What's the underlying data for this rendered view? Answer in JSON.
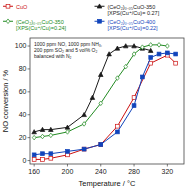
{
  "chart_data": {
    "type": "line",
    "xlabel": "Temperature / °C",
    "ylabel": "NO conversion / %",
    "xlim": [
      155,
      340
    ],
    "ylim": [
      -3,
      107
    ],
    "xticks": [
      160,
      200,
      240,
      280,
      320
    ],
    "yticks": [
      0,
      20,
      40,
      60,
      80,
      100
    ],
    "annotations": [
      "1000 ppm NO, 1000 ppm NH₃,",
      "200 ppm SO₂ and 5 vol% O₂",
      "balanced with N₂"
    ],
    "legend": "top",
    "series": [
      {
        "name": "CuO",
        "color": "#cc1111",
        "marker": "square-open",
        "x": [
          160,
          170,
          180,
          200,
          220,
          240,
          260,
          280,
          300,
          320,
          330
        ],
        "values": [
          1,
          1,
          2,
          5,
          10,
          14,
          30,
          55,
          85,
          92,
          85
        ]
      },
      {
        "name": "(CeO₂)₀.₀₅CuO-350\n[XPS(Cu⁺/Cu)= 0.27]",
        "color": "#1a1a1a",
        "marker": "triangle",
        "x": [
          160,
          170,
          180,
          200,
          220,
          230,
          240,
          250,
          260,
          270,
          280,
          290,
          300
        ],
        "values": [
          25,
          27,
          27,
          29,
          40,
          55,
          75,
          93,
          98,
          100,
          100,
          98,
          96
        ]
      },
      {
        "name": "(CeO₂)₀.₀₅CuO-350\n[XPS(Cu⁺/Cu)=0.24]",
        "color": "#228b22",
        "marker": "diamond-open",
        "x": [
          160,
          170,
          180,
          200,
          220,
          240,
          260,
          270,
          280,
          290,
          300,
          310,
          320
        ],
        "values": [
          20,
          21,
          22,
          25,
          32,
          50,
          72,
          82,
          93,
          99,
          101,
          101,
          100
        ]
      },
      {
        "name": "(CeO₂)₀.₀₅CuO-400\n[XPS(Cu⁺/Cu)=0.22]",
        "color": "#1144bb",
        "marker": "square",
        "x": [
          160,
          170,
          180,
          200,
          220,
          240,
          260,
          280,
          290,
          300,
          310,
          320,
          330
        ],
        "values": [
          5,
          6,
          6,
          8,
          10,
          14,
          25,
          48,
          73,
          90,
          93,
          94,
          93
        ]
      }
    ]
  }
}
